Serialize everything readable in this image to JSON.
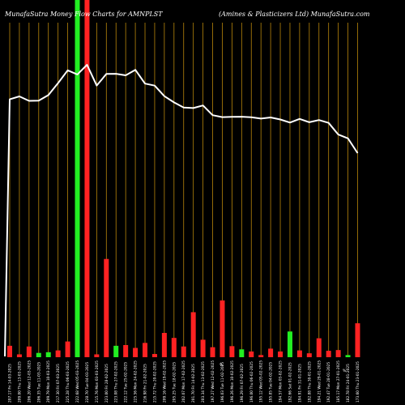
{
  "header": {
    "left": "MunafaSutra  Money Flow  Charts for AMNPLST",
    "right": "(Amines & Plasticizers Ltd) MunafaSutra.com"
  },
  "colors": {
    "background": "#000000",
    "up": "#22ee22",
    "down": "#ff2222",
    "gridline": "#b8860b",
    "price_line": "#ffffff"
  },
  "chart_data": {
    "type": "bar",
    "overlay": "line",
    "title": "Money Flow Charts for AMNPLST",
    "categories": [
      "207.17 Fri 14-03-2025",
      "209.00 Thu 13-03-2025",
      "206.20 Wed 12-03-2025",
      "206.35 Tue 11-03-2025",
      "209.79 Mon 10-03-2025",
      "217.30 Fri 07-03-2025",
      "225.28 Thu 06-03-2025",
      "222.68 Wed 05-03-2025",
      "228.70 Tue 04-03-2025",
      "215.76 Mon 03-03-2025",
      "223.00 Fri 28-02-2025",
      "223.08 Thu 27-02-2025",
      "222.12 Tue 25-02-2025",
      "225.56 Mon 24-02-2025",
      "216.98 Fri 21-02-2025",
      "215.72 Thu 20-02-2025",
      "209.16 Wed 19-02-2025",
      "205.25 Tue 18-02-2025",
      "202.07 Mon 17-02-2025",
      "201.70 Fri 14-02-2025",
      "203.34 Thu 13-02-2025",
      "197.27 Wed 12-02-2025",
      "196.03 Tue 11-02-2025",
      "196.26 Mon 10-02-2025",
      "196.29 Fri 07-02-2025",
      "196.00 Thu 06-02-2025",
      "195.12 Wed 05-02-2025",
      "195.85 Tue 04-02-2025",
      "194.57 Mon 03-02-2025",
      "192.66 Sat 01-02-2025",
      "194.91 Fri 31-01-2025",
      "192.88 Thu 30-01-2025",
      "194.21 Wed 29-01-2025",
      "192.47 Tue 28-01-2025",
      "185.17 Mon 27-01-2025",
      "182.78 Fri 24-01-2025",
      "173.60 Thu 23-01-2025"
    ],
    "series": [
      {
        "values": [
          3.2,
          0.8,
          3.0,
          1.2,
          1.4,
          1.9,
          4.4,
          100,
          100,
          0.8,
          27.5,
          3.2,
          3.4,
          2.6,
          4.0,
          0.9,
          6.8,
          5.4,
          3.0,
          12.6,
          4.9,
          2.8,
          15.9,
          3.1,
          2.2,
          1.6,
          0.6,
          2.4,
          1.6,
          7.2,
          1.9,
          1.1,
          5.3,
          1.8,
          2.0,
          0.6,
          9.5
        ],
        "colors": [
          "down",
          "down",
          "down",
          "up",
          "up",
          "down",
          "down",
          "up",
          "down",
          "down",
          "down",
          "up",
          "down",
          "down",
          "down",
          "down",
          "down",
          "down",
          "down",
          "down",
          "down",
          "down",
          "down",
          "down",
          "up",
          "down",
          "down",
          "down",
          "down",
          "up",
          "down",
          "down",
          "down",
          "down",
          "down",
          "up",
          "down"
        ]
      },
      {
        "values": [
          207.17,
          209.0,
          206.2,
          206.35,
          209.79,
          217.3,
          225.28,
          222.68,
          228.7,
          215.76,
          223.0,
          223.08,
          222.12,
          225.56,
          216.98,
          215.72,
          209.16,
          205.25,
          202.07,
          201.7,
          203.34,
          197.27,
          196.03,
          196.26,
          196.29,
          196.0,
          195.12,
          195.85,
          194.57,
          192.66,
          194.91,
          192.88,
          194.21,
          192.47,
          185.17,
          182.78,
          173.6
        ],
        "values_display": "price"
      }
    ],
    "percent_markers": [
      "%",
      "%"
    ]
  }
}
